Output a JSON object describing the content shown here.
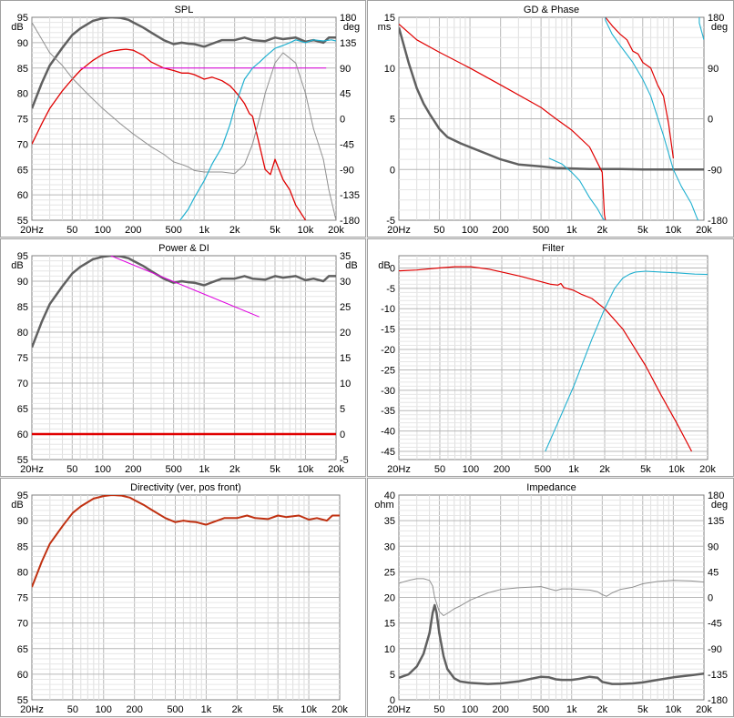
{
  "chart_data": [
    {
      "id": "spl",
      "title": "SPL",
      "type": "line",
      "x_scale": "log",
      "xlim": [
        20,
        20000
      ],
      "x_ticks": [
        "20Hz",
        "50",
        "100",
        "200",
        "500",
        "1k",
        "2k",
        "5k",
        "10k",
        "20k"
      ],
      "left_axis": {
        "unit": "dB",
        "ylim": [
          55,
          95
        ],
        "ticks": [
          "95",
          "90",
          "85",
          "80",
          "75",
          "70",
          "65",
          "60",
          "55"
        ]
      },
      "right_axis": {
        "unit": "deg",
        "ylim": [
          -180,
          180
        ],
        "ticks": [
          "180",
          "135",
          "90",
          "45",
          "0",
          "-45",
          "-90",
          "-135",
          "-180"
        ]
      },
      "series": [
        {
          "color": "#606060",
          "width": 2.5,
          "axis": "left",
          "x": [
            20,
            25,
            30,
            40,
            50,
            60,
            80,
            100,
            120,
            150,
            180,
            200,
            250,
            300,
            400,
            500,
            600,
            700,
            800,
            1000,
            1200,
            1500,
            2000,
            2500,
            3000,
            4000,
            5000,
            6000,
            8000,
            10000,
            12000,
            15000,
            17000,
            20000
          ],
          "y": [
            77,
            82,
            85.5,
            89,
            91.5,
            92.8,
            94.3,
            94.8,
            95,
            94.9,
            94.5,
            94,
            93,
            92,
            90.5,
            89.7,
            90,
            89.8,
            89.7,
            89.2,
            89.8,
            90.5,
            90.5,
            91,
            90.5,
            90.3,
            91,
            90.7,
            91,
            90.2,
            90.5,
            90,
            91,
            91
          ]
        },
        {
          "color": "#e00000",
          "width": 1.3,
          "axis": "left",
          "x": [
            20,
            25,
            30,
            40,
            50,
            60,
            80,
            100,
            120,
            150,
            170,
            200,
            250,
            300,
            400,
            500,
            600,
            700,
            800,
            1000,
            1200,
            1500,
            1800,
            2000,
            2200,
            2500,
            2800,
            3000,
            3500,
            4000,
            4500,
            5000,
            6000,
            7000,
            8000,
            10000
          ],
          "y": [
            70,
            74,
            77,
            80.5,
            82.8,
            84.5,
            86.5,
            87.7,
            88.3,
            88.6,
            88.7,
            88.5,
            87.5,
            86.2,
            85,
            84.5,
            84,
            84,
            83.7,
            82.8,
            83.2,
            82.5,
            81.5,
            80.5,
            79.5,
            78,
            76,
            75.5,
            70,
            65,
            64,
            67,
            63,
            61,
            58,
            55
          ]
        },
        {
          "color": "#e000e0",
          "width": 1,
          "axis": "left",
          "x": [
            60,
            16000
          ],
          "y": [
            85,
            85
          ]
        },
        {
          "color": "#909090",
          "width": 1,
          "axis": "left",
          "x": [
            20,
            30,
            40,
            50,
            70,
            100,
            150,
            200,
            300,
            400,
            500,
            600,
            700,
            800,
            1000,
            1500,
            2000,
            2500,
            3000,
            3500,
            4000,
            5000,
            6000,
            8000,
            10000,
            12000,
            15000,
            17000,
            20000
          ],
          "y": [
            94,
            88,
            85.5,
            83,
            80,
            77,
            74,
            72,
            69.5,
            68,
            66.5,
            66,
            65.5,
            64.8,
            64.5,
            64.5,
            64.2,
            66,
            70,
            75,
            80,
            86,
            88,
            86,
            80,
            73,
            67,
            61,
            55
          ]
        },
        {
          "color": "#20b0d0",
          "width": 1.2,
          "axis": "right",
          "x": [
            580,
            700,
            800,
            1000,
            1200,
            1500,
            1800,
            2000,
            2500,
            3000,
            3500,
            4000,
            4500,
            5000,
            6000,
            7000,
            8000,
            10000,
            12000,
            15000,
            18000,
            20000
          ],
          "y": [
            -180,
            -160,
            -140,
            -110,
            -80,
            -50,
            -10,
            20,
            70,
            90,
            100,
            110,
            118,
            125,
            130,
            135,
            140,
            135,
            140,
            138,
            140,
            138
          ]
        }
      ]
    },
    {
      "id": "gd_phase",
      "title": "GD & Phase",
      "type": "line",
      "x_scale": "log",
      "xlim": [
        20,
        20000
      ],
      "x_ticks": [
        "20Hz",
        "50",
        "100",
        "200",
        "500",
        "1k",
        "2k",
        "5k",
        "10k",
        "20k"
      ],
      "left_axis": {
        "unit": "ms",
        "ylim": [
          -5,
          15
        ],
        "ticks": [
          "15",
          "10",
          "5",
          "0",
          "-5"
        ]
      },
      "right_axis": {
        "unit": "deg",
        "ylim": [
          -180,
          180
        ],
        "ticks": [
          "180",
          "90",
          "0",
          "-90",
          "-180"
        ]
      },
      "series": [
        {
          "color": "#606060",
          "width": 2.5,
          "axis": "left",
          "x": [
            20,
            25,
            30,
            35,
            40,
            50,
            60,
            80,
            100,
            150,
            200,
            300,
            500,
            700,
            1000,
            1500,
            2000,
            3000,
            5000,
            10000,
            20000
          ],
          "y": [
            14,
            10.5,
            8,
            6.5,
            5.5,
            4,
            3.2,
            2.6,
            2.2,
            1.5,
            1,
            0.5,
            0.3,
            0.15,
            0.1,
            0.05,
            0.05,
            0.05,
            0,
            0,
            0
          ]
        },
        {
          "color": "#e00000",
          "width": 1.2,
          "axis": "right",
          "x": [
            20,
            30,
            50,
            100,
            200,
            500,
            700,
            1000,
            1500,
            2000,
            2100,
            2150,
            2500,
            3000,
            3500,
            4000,
            4500,
            5000,
            6000,
            7000,
            8000,
            9000,
            10000
          ],
          "y": [
            168,
            140,
            118,
            90,
            60,
            20,
            0,
            -20,
            -50,
            -95,
            -170,
            180,
            165,
            150,
            140,
            120,
            115,
            100,
            90,
            60,
            40,
            -10,
            -70
          ]
        },
        {
          "color": "#20b0d0",
          "width": 1.1,
          "axis": "right",
          "x": [
            600,
            800,
            1000,
            1200,
            1500,
            1800,
            2000,
            2100,
            2150,
            2500,
            3000,
            4000,
            5000,
            6000,
            8000,
            10000,
            12000,
            15000,
            17000,
            17500,
            18000,
            20000
          ],
          "y": [
            -70,
            -80,
            -95,
            -110,
            -140,
            -160,
            -175,
            -180,
            175,
            150,
            130,
            100,
            70,
            40,
            -30,
            -90,
            -120,
            -150,
            -175,
            -180,
            170,
            140
          ]
        }
      ]
    },
    {
      "id": "power_di",
      "title": "Power & DI",
      "type": "line",
      "x_scale": "log",
      "xlim": [
        20,
        20000
      ],
      "x_ticks": [
        "20Hz",
        "50",
        "100",
        "200",
        "500",
        "1k",
        "2k",
        "5k",
        "10k",
        "20k"
      ],
      "left_axis": {
        "unit": "dB",
        "ylim": [
          55,
          95
        ],
        "ticks": [
          "95",
          "90",
          "85",
          "80",
          "75",
          "70",
          "65",
          "60",
          "55"
        ]
      },
      "right_axis": {
        "unit": "dB",
        "ylim": [
          -5,
          35
        ],
        "ticks": [
          "35",
          "30",
          "25",
          "20",
          "15",
          "10",
          "5",
          "0",
          "-5"
        ]
      },
      "series": [
        {
          "color": "#606060",
          "width": 2.5,
          "axis": "left",
          "x": [
            20,
            25,
            30,
            40,
            50,
            60,
            80,
            100,
            120,
            150,
            180,
            200,
            250,
            300,
            400,
            500,
            600,
            700,
            800,
            1000,
            1200,
            1500,
            2000,
            2500,
            3000,
            4000,
            5000,
            6000,
            8000,
            10000,
            12000,
            15000,
            17000,
            20000
          ],
          "y": [
            77,
            82,
            85.5,
            89,
            91.5,
            92.8,
            94.3,
            94.8,
            95,
            94.9,
            94.5,
            94,
            93,
            92,
            90.5,
            89.7,
            90,
            89.8,
            89.7,
            89.2,
            89.8,
            90.5,
            90.5,
            91,
            90.5,
            90.3,
            91,
            90.7,
            91,
            90.2,
            90.5,
            90,
            91,
            91
          ]
        },
        {
          "color": "#e000e0",
          "width": 1,
          "axis": "left",
          "x": [
            120,
            3500
          ],
          "y": [
            95,
            83
          ]
        },
        {
          "color": "#e00000",
          "width": 2.5,
          "axis": "right",
          "x": [
            20,
            20000
          ],
          "y": [
            0,
            0
          ]
        }
      ]
    },
    {
      "id": "filter",
      "title": "Filter",
      "type": "line",
      "x_scale": "log",
      "xlim": [
        20,
        20000
      ],
      "x_ticks": [
        "20Hz",
        "50",
        "100",
        "200",
        "500",
        "1k",
        "2k",
        "5k",
        "10k",
        "20k"
      ],
      "left_axis": {
        "unit": "dB",
        "ylim": [
          -47,
          3
        ],
        "ticks": [
          "0",
          "-5",
          "-10",
          "-15",
          "-20",
          "-25",
          "-30",
          "-35",
          "-40",
          "-45"
        ]
      },
      "series": [
        {
          "color": "#e00000",
          "width": 1.2,
          "axis": "left",
          "x": [
            20,
            30,
            50,
            70,
            100,
            150,
            200,
            300,
            500,
            600,
            700,
            750,
            800,
            1000,
            1200,
            1500,
            2000,
            3000,
            5000,
            7000,
            10000,
            14000
          ],
          "y": [
            -0.7,
            -0.5,
            0,
            0.3,
            0.3,
            -0.3,
            -1,
            -2,
            -3.5,
            -4,
            -4.2,
            -3.8,
            -4.8,
            -5.5,
            -6.5,
            -7.5,
            -10,
            -15,
            -24,
            -31,
            -38,
            -45
          ]
        },
        {
          "color": "#20b0d0",
          "width": 1.1,
          "axis": "left",
          "x": [
            530,
            700,
            1000,
            1500,
            2000,
            2500,
            3000,
            3500,
            4000,
            5000,
            7000,
            10000,
            15000,
            20000
          ],
          "y": [
            -45,
            -38,
            -29,
            -17.5,
            -10,
            -5,
            -2.5,
            -1.5,
            -1,
            -0.8,
            -1,
            -1.2,
            -1.5,
            -1.6
          ]
        }
      ]
    },
    {
      "id": "directivity",
      "title": "Directivity (ver, pos front)",
      "type": "line",
      "x_scale": "log",
      "xlim": [
        20,
        20000
      ],
      "x_ticks": [
        "20Hz",
        "50",
        "100",
        "200",
        "500",
        "1k",
        "2k",
        "5k",
        "10k",
        "20k"
      ],
      "left_axis": {
        "unit": "dB",
        "ylim": [
          55,
          95
        ],
        "ticks": [
          "95",
          "90",
          "85",
          "80",
          "75",
          "70",
          "65",
          "60",
          "55"
        ]
      },
      "series": [
        {
          "color": "#c03010",
          "width": 2,
          "axis": "left",
          "x": [
            20,
            25,
            30,
            40,
            50,
            60,
            80,
            100,
            120,
            150,
            180,
            200,
            250,
            300,
            400,
            500,
            600,
            700,
            800,
            1000,
            1200,
            1500,
            2000,
            2500,
            3000,
            4000,
            5000,
            6000,
            8000,
            10000,
            12000,
            15000,
            17000,
            20000
          ],
          "y": [
            77,
            82,
            85.5,
            89,
            91.5,
            92.8,
            94.3,
            94.8,
            95,
            94.9,
            94.5,
            94,
            93,
            92,
            90.5,
            89.7,
            90,
            89.8,
            89.7,
            89.2,
            89.8,
            90.5,
            90.5,
            91,
            90.5,
            90.3,
            91,
            90.7,
            91,
            90.2,
            90.5,
            90,
            91,
            91
          ]
        }
      ]
    },
    {
      "id": "impedance",
      "title": "Impedance",
      "type": "line",
      "x_scale": "log",
      "xlim": [
        20,
        20000
      ],
      "x_ticks": [
        "20Hz",
        "50",
        "100",
        "200",
        "500",
        "1k",
        "2k",
        "5k",
        "10k",
        "20k"
      ],
      "left_axis": {
        "unit": "ohm",
        "ylim": [
          0,
          40
        ],
        "ticks": [
          "40",
          "35",
          "30",
          "25",
          "20",
          "15",
          "10",
          "5",
          "0"
        ]
      },
      "right_axis": {
        "unit": "deg",
        "ylim": [
          -180,
          180
        ],
        "ticks": [
          "180",
          "135",
          "90",
          "45",
          "0",
          "-45",
          "-90",
          "-135",
          "-180"
        ]
      },
      "series": [
        {
          "color": "#606060",
          "width": 2.5,
          "axis": "left",
          "x": [
            20,
            25,
            30,
            35,
            40,
            43,
            45,
            47,
            50,
            55,
            60,
            70,
            80,
            100,
            150,
            200,
            300,
            400,
            500,
            600,
            700,
            800,
            1000,
            1200,
            1500,
            1800,
            2000,
            2500,
            3000,
            4000,
            5000,
            7000,
            10000,
            15000,
            20000
          ],
          "y": [
            4.3,
            5,
            6.5,
            9,
            13,
            17,
            18.5,
            17,
            13,
            8.5,
            6,
            4.2,
            3.6,
            3.3,
            3.1,
            3.2,
            3.6,
            4.1,
            4.5,
            4.4,
            4,
            3.9,
            3.9,
            4.1,
            4.5,
            4.3,
            3.5,
            3.1,
            3.1,
            3.2,
            3.4,
            3.9,
            4.4,
            4.8,
            5.1
          ]
        },
        {
          "color": "#909090",
          "width": 1,
          "axis": "right",
          "x": [
            20,
            25,
            30,
            35,
            40,
            43,
            45,
            50,
            55,
            60,
            70,
            80,
            100,
            150,
            200,
            300,
            500,
            700,
            800,
            1000,
            1500,
            1800,
            2000,
            2200,
            2500,
            3000,
            4000,
            5000,
            7000,
            10000,
            15000,
            20000
          ],
          "y": [
            25,
            30,
            33,
            33,
            30,
            20,
            0,
            -25,
            -32,
            -28,
            -20,
            -15,
            -5,
            8,
            14,
            17,
            19,
            12,
            15,
            15,
            13,
            10,
            5,
            2,
            8,
            14,
            18,
            24,
            28,
            30,
            29,
            27
          ]
        }
      ]
    }
  ]
}
